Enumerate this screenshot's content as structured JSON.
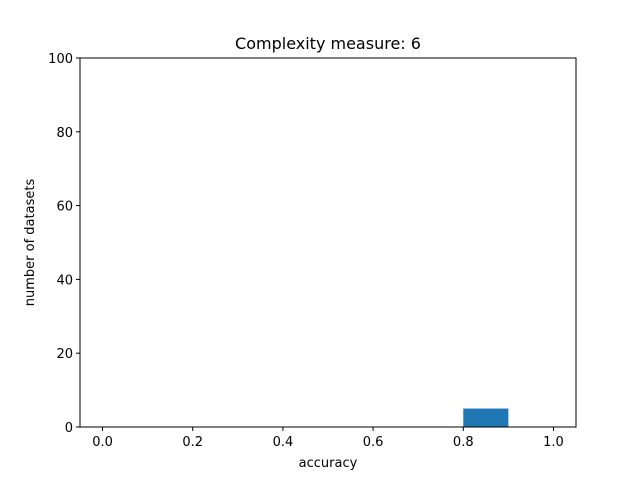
{
  "chart_data": {
    "type": "bar",
    "title": "Complexity measure: 6",
    "xlabel": "accuracy",
    "ylabel": "number of datasets",
    "xlim": [
      -0.05,
      1.05
    ],
    "ylim": [
      0,
      100
    ],
    "xticks": [
      0.0,
      0.2,
      0.4,
      0.6,
      0.8,
      1.0
    ],
    "xtick_labels": [
      "0.0",
      "0.2",
      "0.4",
      "0.6",
      "0.8",
      "1.0"
    ],
    "yticks": [
      0,
      20,
      40,
      60,
      80,
      100
    ],
    "ytick_labels": [
      "0",
      "20",
      "40",
      "60",
      "80",
      "100"
    ],
    "bars": [
      {
        "x0": 0.8,
        "x1": 0.9,
        "value": 5
      }
    ],
    "bar_color": "#1f77b4",
    "grid": false,
    "legend": "none"
  }
}
